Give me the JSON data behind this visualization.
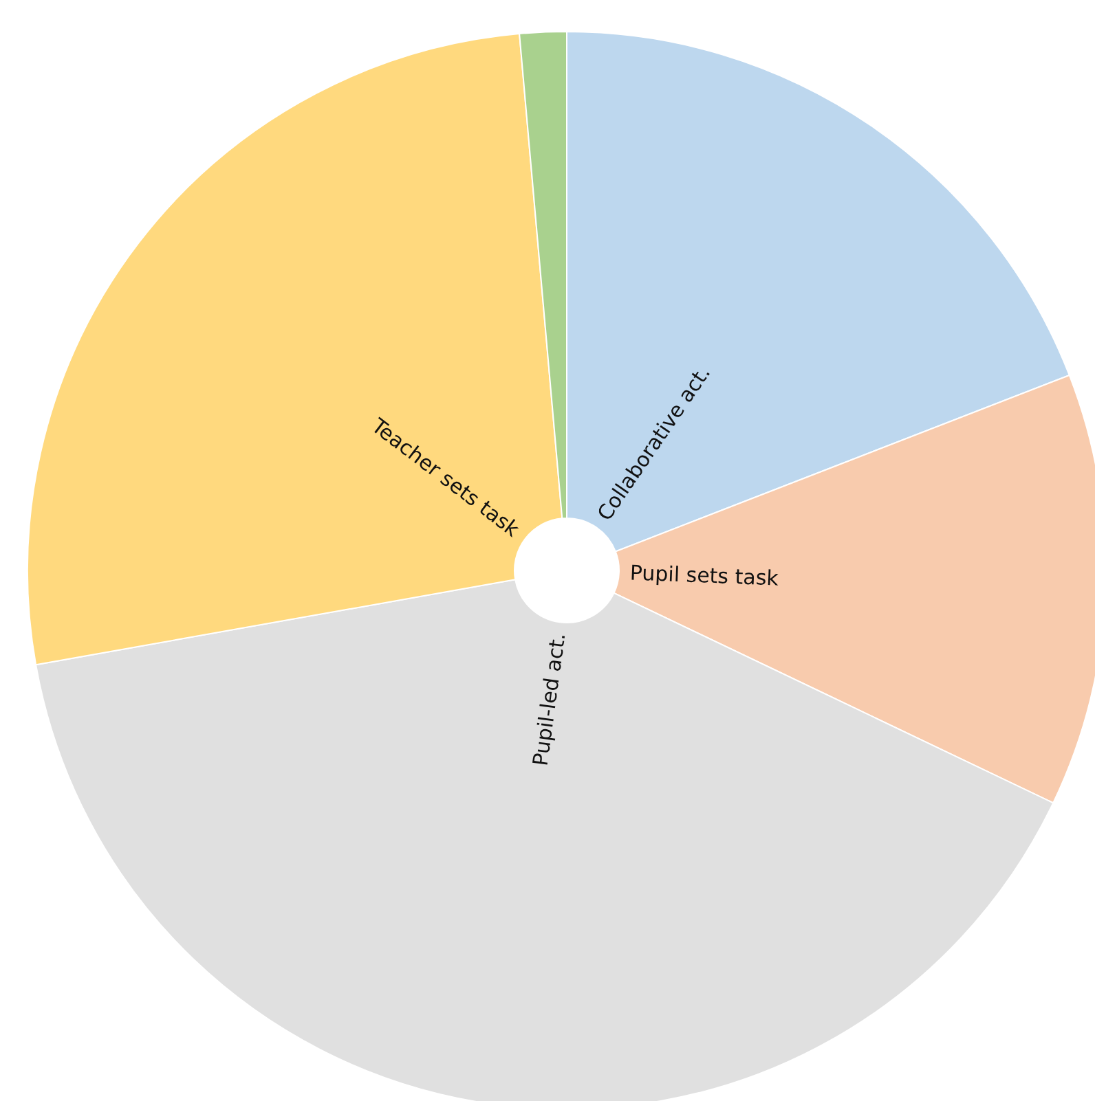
{
  "chart_data": {
    "type": "pie",
    "categories": [
      "Collaborative act.",
      "Pupil sets task",
      "Pupil-led act.",
      "Teacher sets task",
      null
    ],
    "values": [
      19.1,
      13.0,
      40.1,
      26.4,
      1.4
    ],
    "colors": [
      "#bdd7ee",
      "#f8cbad",
      "#e0e0e0",
      "#ffd97e",
      "#a9d18e"
    ]
  }
}
